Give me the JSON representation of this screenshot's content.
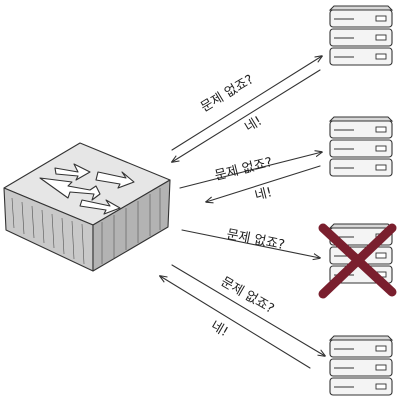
{
  "figure": {
    "router": {
      "name": "router",
      "icon": "router-arrows-icon"
    },
    "servers": [
      {
        "id": "server-1",
        "status": "ok"
      },
      {
        "id": "server-2",
        "status": "ok"
      },
      {
        "id": "server-3",
        "status": "failed",
        "mark_color": "#7a1f2e"
      },
      {
        "id": "server-4",
        "status": "ok"
      }
    ],
    "exchanges": [
      {
        "question": "문제 없죠?",
        "answer": "네!"
      },
      {
        "question": "문제 없죠?",
        "answer": "네!"
      },
      {
        "question": "문제 없죠?",
        "answer": ""
      },
      {
        "question": "문제 없죠?",
        "answer": "네!"
      }
    ],
    "colors": {
      "ink": "#333333",
      "box_top": "#e6e6e6",
      "box_front": "#c9c9c9",
      "box_side": "#b3b3b3",
      "failure_mark": "#7a1f2e"
    }
  }
}
